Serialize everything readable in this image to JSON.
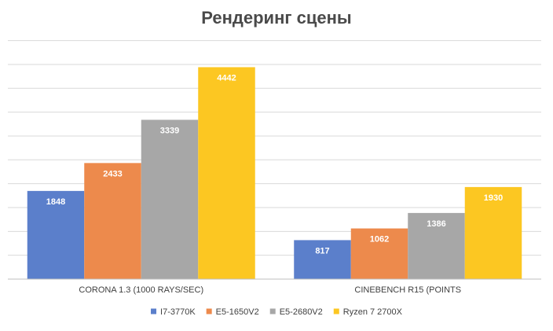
{
  "chart_data": {
    "type": "bar",
    "title": "Рендеринг сцены",
    "xlabel": "",
    "ylabel": "",
    "categories": [
      "CORONA 1.3 (1000 RAYS/SEC)",
      "CINEBENCH R15 (POINTS"
    ],
    "series": [
      {
        "name": "I7-3770K",
        "color": "#5B7FCB",
        "values": [
          1848,
          817
        ]
      },
      {
        "name": "E5-1650V2",
        "color": "#ED8A4C",
        "values": [
          2433,
          1062
        ]
      },
      {
        "name": "E5-2680V2",
        "color": "#A7A7A7",
        "values": [
          3339,
          1386
        ]
      },
      {
        "name": "Ryzen 7 2700X",
        "color": "#FCC722",
        "values": [
          4442,
          1930
        ]
      }
    ],
    "ylim": [
      0,
      5000
    ],
    "grid": true,
    "legend_position": "bottom",
    "axis_tick_labels_visible": false
  }
}
